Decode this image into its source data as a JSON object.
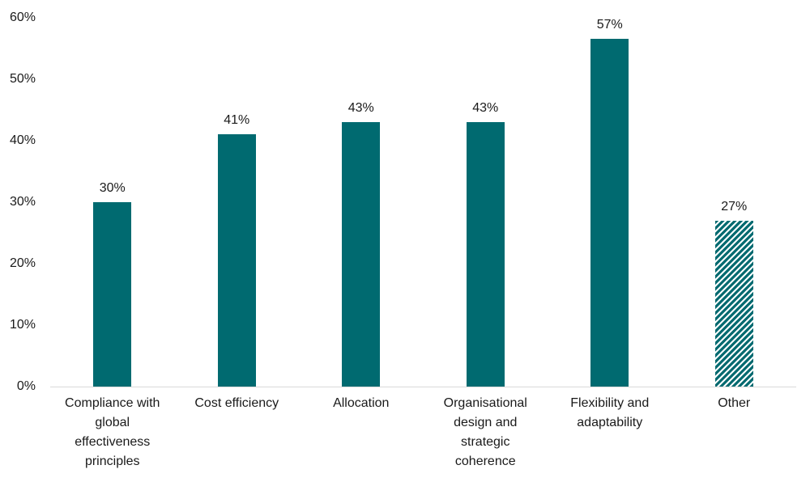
{
  "chart_data": {
    "type": "bar",
    "title": "",
    "categories": [
      "Compliance with global effectiveness principles",
      "Cost efficiency",
      "Allocation",
      "Organisational design and strategic coherence",
      "Flexibility and adaptability",
      "Other"
    ],
    "values": [
      30,
      41,
      43,
      43,
      57,
      27
    ],
    "value_labels": [
      "30%",
      "41%",
      "43%",
      "43%",
      "57%",
      "27%"
    ],
    "hatched": [
      false,
      false,
      false,
      false,
      false,
      true
    ],
    "y_ticks": [
      {
        "value": 60,
        "label": "60%"
      },
      {
        "value": 50,
        "label": "50%"
      },
      {
        "value": 40,
        "label": "40%"
      },
      {
        "value": 30,
        "label": "30%"
      },
      {
        "value": 20,
        "label": "20%"
      },
      {
        "value": 10,
        "label": "10%"
      },
      {
        "value": 0,
        "label": "0%"
      }
    ],
    "ylim": [
      0,
      60
    ],
    "xlabel": "",
    "ylabel": "",
    "grid": false,
    "legend": false,
    "colors": {
      "bar": "#006A70",
      "hatch_background": "#ffffff",
      "axis_line": "#d9d9d9",
      "text": "#1a1a1a",
      "background": "#ffffff"
    }
  }
}
